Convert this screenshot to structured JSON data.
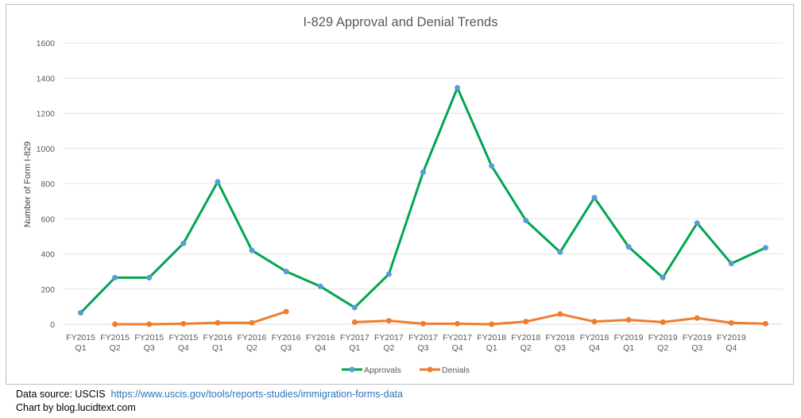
{
  "chart_data": {
    "type": "line",
    "title": "I-829 Approval and Denial Trends",
    "xlabel": "",
    "ylabel": "Number of Form I-829",
    "ylim": [
      0,
      1600
    ],
    "yticks": [
      0,
      200,
      400,
      600,
      800,
      1000,
      1200,
      1400,
      1600
    ],
    "grid": true,
    "legend_position": "bottom",
    "categories": [
      [
        "FY2015",
        "Q1"
      ],
      [
        "FY2015",
        "Q2"
      ],
      [
        "FY2015",
        "Q3"
      ],
      [
        "FY2015",
        "Q4"
      ],
      [
        "FY2016",
        "Q1"
      ],
      [
        "FY2016",
        "Q2"
      ],
      [
        "FY2016",
        "Q3"
      ],
      [
        "FY2016",
        "Q4"
      ],
      [
        "FY2017",
        "Q1"
      ],
      [
        "FY2017",
        "Q2"
      ],
      [
        "FY2017",
        "Q3"
      ],
      [
        "FY2017",
        "Q4"
      ],
      [
        "FY2018",
        "Q1"
      ],
      [
        "FY2018",
        "Q2"
      ],
      [
        "FY2018",
        "Q3"
      ],
      [
        "FY2018",
        "Q4"
      ],
      [
        "FY2019",
        "Q1"
      ],
      [
        "FY2019",
        "Q2"
      ],
      [
        "FY2019",
        "Q3"
      ],
      [
        "FY2019",
        "Q4"
      ],
      [
        "",
        ""
      ]
    ],
    "series": [
      {
        "name": "Approvals",
        "color": "#00a651",
        "marker_color": "#5b9bd5",
        "values": [
          65,
          265,
          265,
          460,
          810,
          420,
          300,
          215,
          95,
          285,
          865,
          1345,
          900,
          590,
          410,
          720,
          440,
          265,
          575,
          345,
          435
        ]
      },
      {
        "name": "Denials",
        "color": "#ed7d31",
        "marker_color": "#ed7d31",
        "values": [
          null,
          0,
          0,
          3,
          8,
          8,
          72,
          null,
          12,
          20,
          3,
          3,
          0,
          15,
          58,
          15,
          25,
          12,
          35,
          8,
          3
        ]
      }
    ]
  },
  "footer": {
    "source_label": "Data source: USCIS",
    "source_url": "https://www.uscis.gov/tools/reports-studies/immigration-forms-data",
    "credit": "Chart by blog.lucidtext.com"
  }
}
